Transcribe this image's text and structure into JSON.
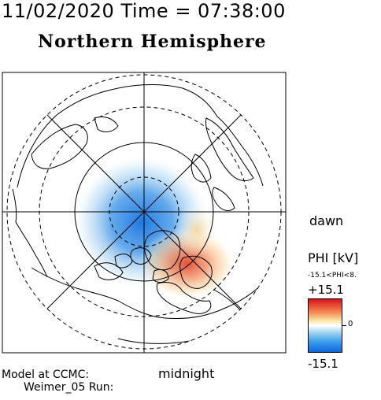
{
  "header": {
    "datetime": "11/02/2020 Time = 07:38:00"
  },
  "title": "Northern Hemisphere",
  "orientation": {
    "dawn": "dawn",
    "midnight": "midnight"
  },
  "footer": {
    "model": "Model at CCMC:",
    "run": "Weimer_05 Run:"
  },
  "colorbar": {
    "title": "PHI [kV]",
    "range_text": "-15.1<PHI<8.",
    "max_label": "+15.1",
    "zero_label": "0",
    "min_label": "-15.1",
    "colors": {
      "positive": "#d8141e",
      "neutral": "#ffffff",
      "negative": "#1066dc"
    }
  },
  "map": {
    "projection": "polar",
    "hemisphere": "north",
    "potential_cells": [
      {
        "name": "negative-cell",
        "sign": "negative",
        "color": "#2a86e4"
      },
      {
        "name": "positive-cell",
        "sign": "positive",
        "color": "#f0603c"
      }
    ]
  }
}
